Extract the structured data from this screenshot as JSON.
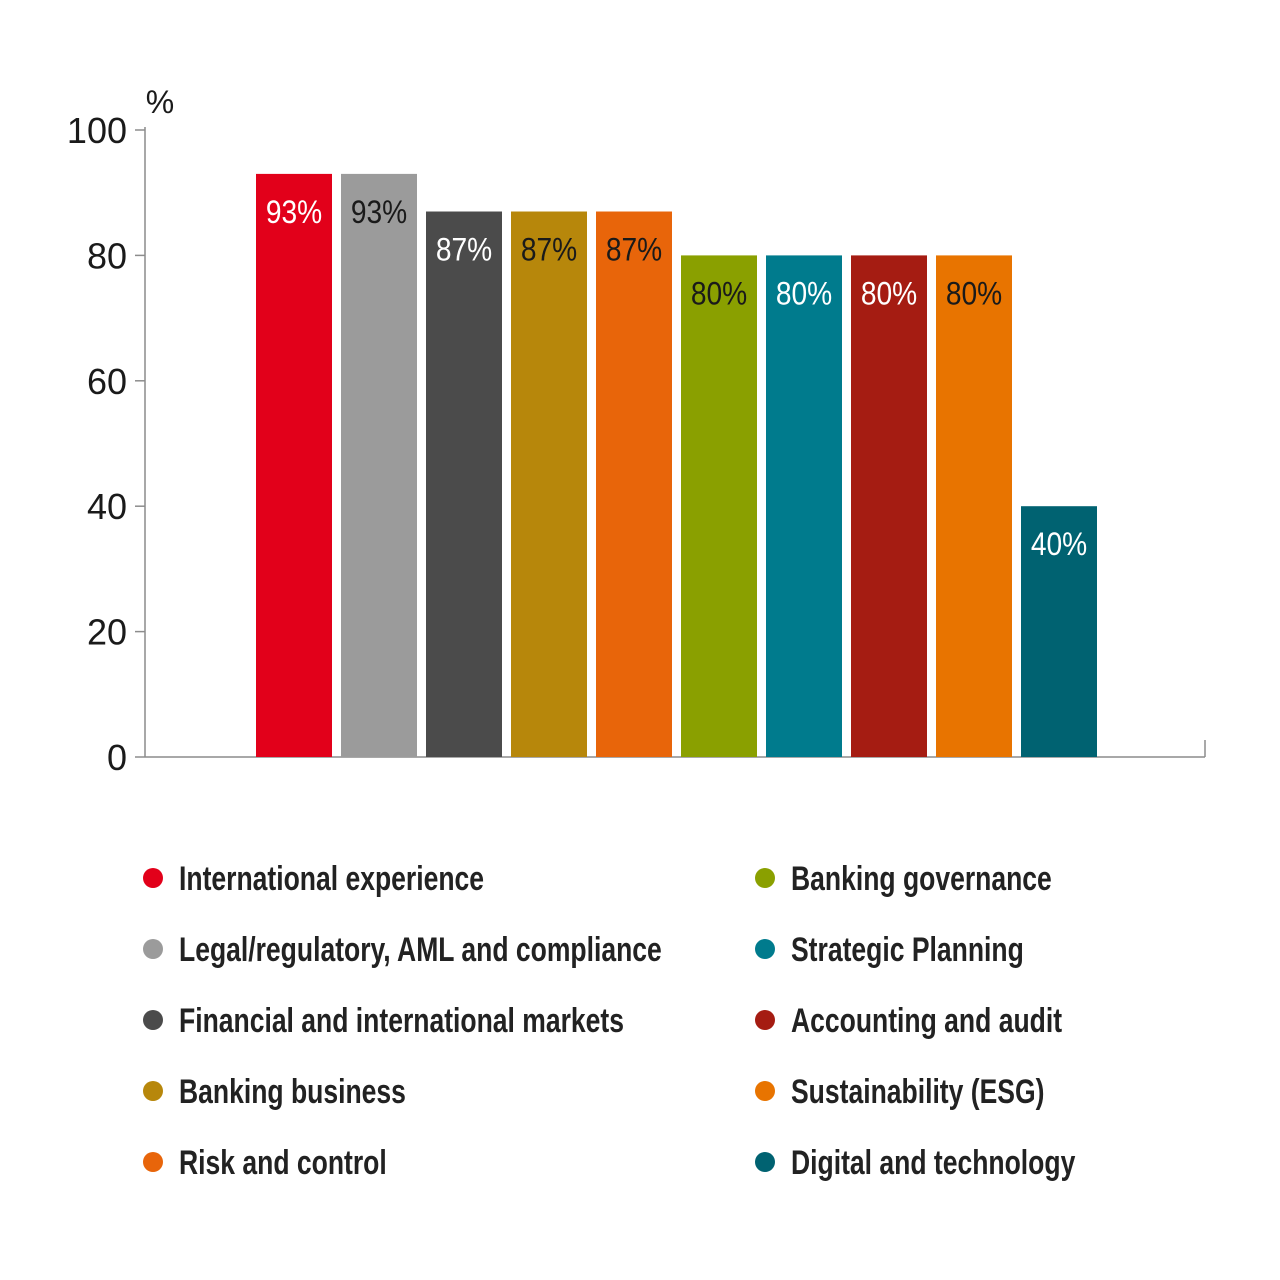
{
  "chart_data": {
    "type": "bar",
    "ylabel": "%",
    "ylim": [
      0,
      100
    ],
    "yticks": [
      0,
      20,
      40,
      60,
      80,
      100
    ],
    "grid": false,
    "legend_position": "bottom",
    "categories": [
      "International experience",
      "Legal/regulatory, AML and compliance",
      "Financial and international markets",
      "Banking business",
      "Risk and control",
      "Banking governance",
      "Strategic Planning",
      "Accounting and audit",
      "Sustainability (ESG)",
      "Digital and technology"
    ],
    "values": [
      93,
      93,
      87,
      87,
      87,
      80,
      80,
      80,
      80,
      40
    ],
    "data_labels": [
      "93%",
      "93%",
      "87%",
      "87%",
      "87%",
      "80%",
      "80%",
      "80%",
      "80%",
      "40%"
    ],
    "colors": [
      "#e2001a",
      "#9b9b9b",
      "#4b4b4b",
      "#b7870b",
      "#e8650a",
      "#8aa000",
      "#007b8d",
      "#a51c12",
      "#e87400",
      "#006271"
    ],
    "label_colors": [
      "#ffffff",
      "#1a1a1a",
      "#ffffff",
      "#1a1a1a",
      "#1a1a1a",
      "#1a1a1a",
      "#ffffff",
      "#ffffff",
      "#1a1a1a",
      "#ffffff"
    ]
  }
}
